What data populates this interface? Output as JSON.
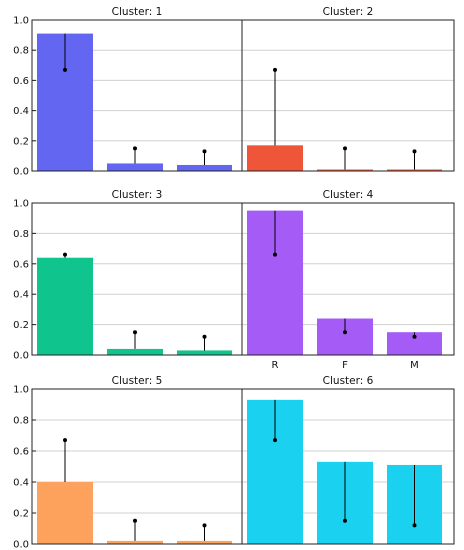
{
  "chart_data": {
    "type": "bar",
    "layout": "2 columns x 3 rows of panels, shared y-axis per row",
    "categories": [
      "R",
      "F",
      "M"
    ],
    "ylim": [
      0,
      1.0
    ],
    "yticks": [
      "0.0",
      "0.2",
      "0.4",
      "0.6",
      "0.8",
      "1.0"
    ],
    "grid": "horizontal",
    "error_marker": "dot at reference value with vertical line to bar top",
    "panels": [
      {
        "title": "Cluster: 1",
        "color": "#6366f1",
        "values": [
          0.91,
          0.05,
          0.04
        ],
        "markers": [
          0.67,
          0.15,
          0.13
        ],
        "show_categories": false
      },
      {
        "title": "Cluster: 2",
        "color": "#ef5538",
        "values": [
          0.17,
          0.01,
          0.01
        ],
        "markers": [
          0.67,
          0.15,
          0.13
        ],
        "show_categories": false
      },
      {
        "title": "Cluster: 3",
        "color": "#10c48e",
        "values": [
          0.64,
          0.04,
          0.03
        ],
        "markers": [
          0.66,
          0.15,
          0.12
        ],
        "show_categories": false
      },
      {
        "title": "Cluster: 4",
        "color": "#a55cf7",
        "values": [
          0.95,
          0.24,
          0.15
        ],
        "markers": [
          0.66,
          0.15,
          0.12
        ],
        "show_categories": true
      },
      {
        "title": "Cluster: 5",
        "color": "#fda25d",
        "values": [
          0.4,
          0.02,
          0.02
        ],
        "markers": [
          0.67,
          0.15,
          0.12
        ],
        "show_categories": false
      },
      {
        "title": "Cluster: 6",
        "color": "#1ad2ef",
        "values": [
          0.93,
          0.53,
          0.51
        ],
        "markers": [
          0.67,
          0.15,
          0.12
        ],
        "show_categories": false
      }
    ]
  }
}
